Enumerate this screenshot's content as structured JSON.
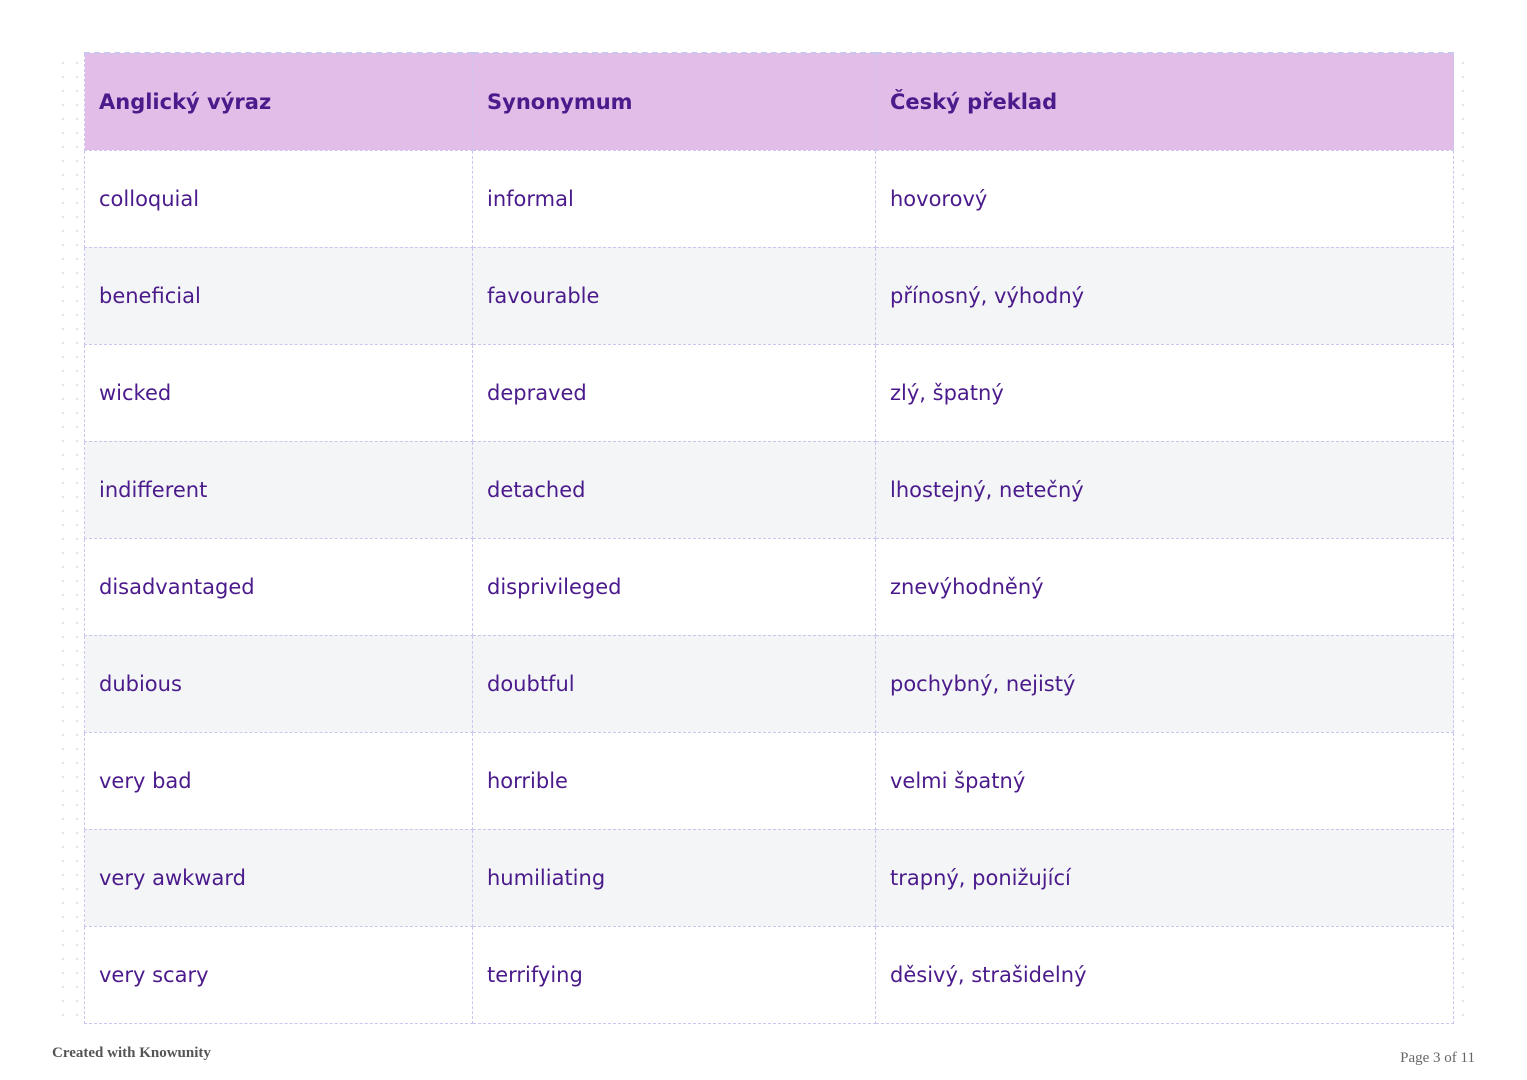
{
  "table": {
    "headers": [
      "Anglický výraz",
      "Synonymum",
      "Český překlad"
    ],
    "rows": [
      [
        "colloquial",
        "informal",
        "hovorový"
      ],
      [
        "beneficial",
        "favourable",
        "přínosný, výhodný"
      ],
      [
        "wicked",
        "depraved",
        "zlý, špatný"
      ],
      [
        "indifferent",
        "detached",
        "lhostejný, netečný"
      ],
      [
        "disadvantaged",
        "disprivileged",
        "znevýhodněný"
      ],
      [
        "dubious",
        "doubtful",
        "pochybný, nejistý"
      ],
      [
        "very bad",
        "horrible",
        "velmi špatný"
      ],
      [
        "very awkward",
        "humiliating",
        "trapný, ponižující"
      ],
      [
        "very scary",
        "terrifying",
        "děsivý, strašidelný"
      ]
    ]
  },
  "footer": {
    "credit": "Created with Knowunity",
    "page_indicator": "Page 3 of 11"
  },
  "colors": {
    "header_background": "#e1bde8",
    "text": "#4b1a8b",
    "alternate_row_background": "#f3f5f7",
    "border": "#c9c6ef"
  }
}
